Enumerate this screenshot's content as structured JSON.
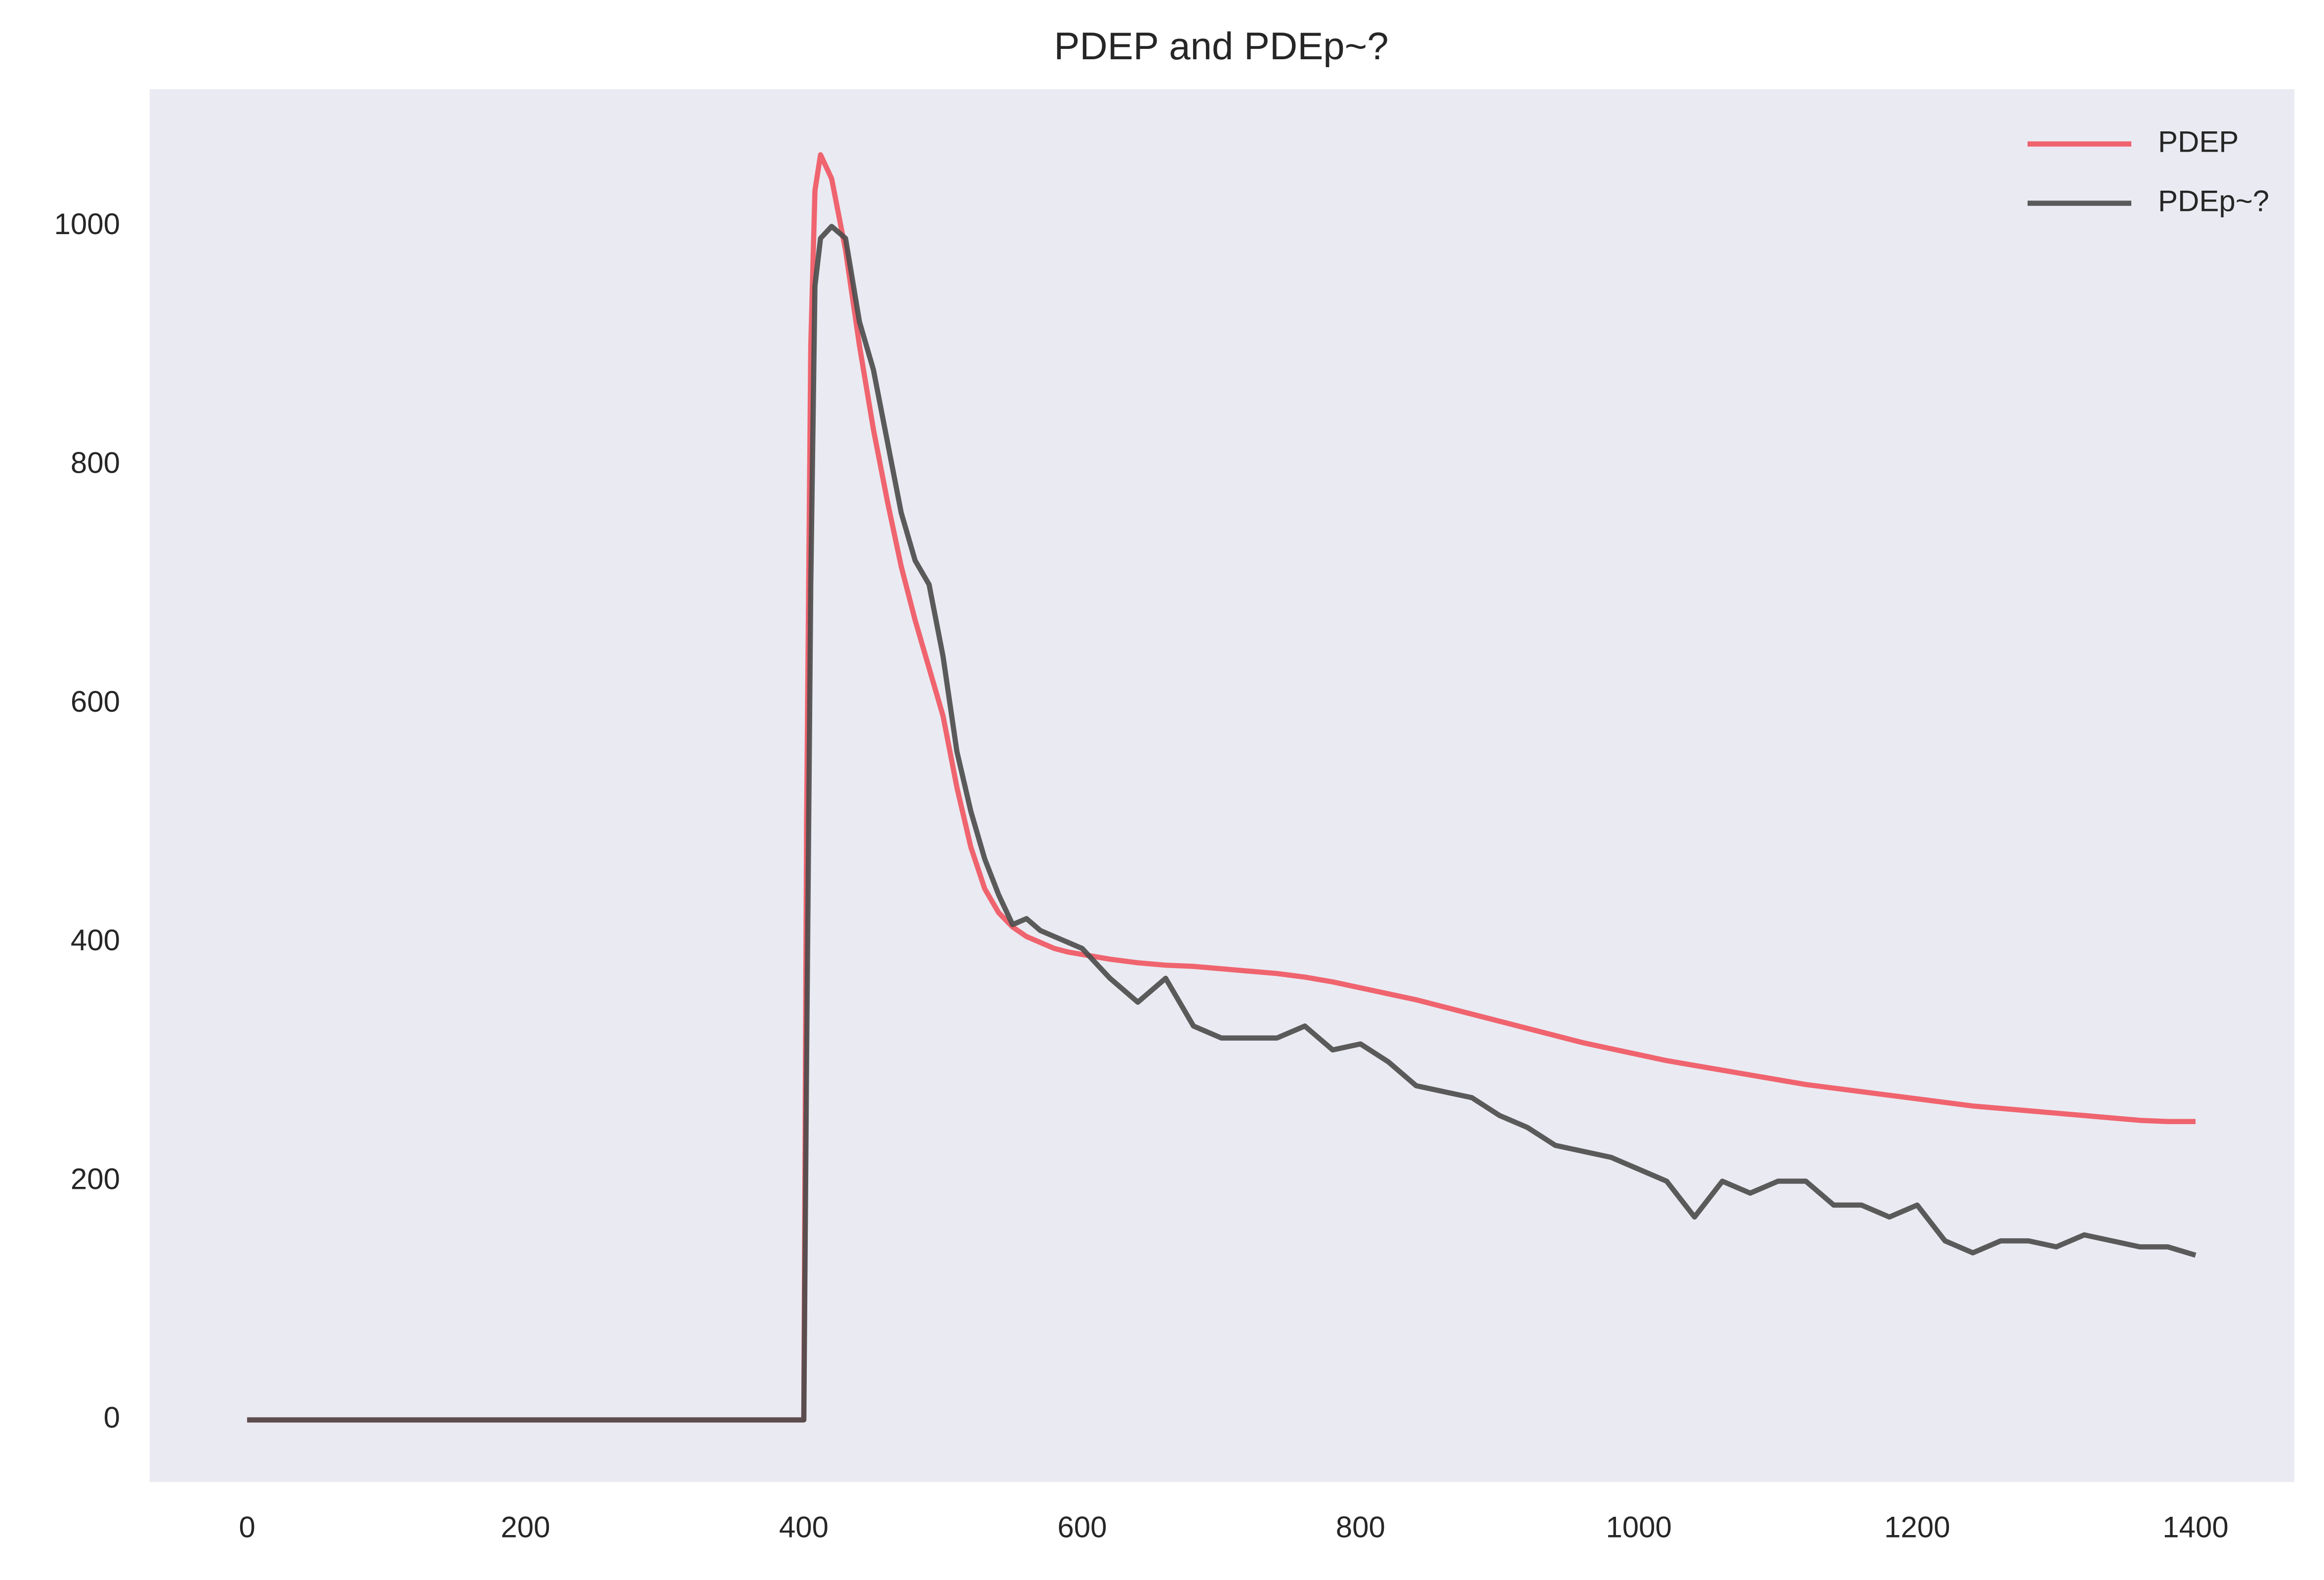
{
  "chart_data": {
    "type": "line",
    "title": "PDEP and PDEp~?",
    "x": [
      0,
      400,
      402,
      405,
      408,
      412,
      420,
      430,
      440,
      450,
      460,
      470,
      480,
      490,
      500,
      510,
      520,
      530,
      540,
      550,
      560,
      570,
      580,
      590,
      600,
      620,
      640,
      660,
      680,
      700,
      720,
      740,
      760,
      780,
      800,
      820,
      840,
      860,
      880,
      900,
      920,
      940,
      960,
      980,
      1000,
      1020,
      1040,
      1060,
      1080,
      1100,
      1120,
      1140,
      1160,
      1180,
      1200,
      1220,
      1240,
      1260,
      1280,
      1300,
      1320,
      1340,
      1360,
      1380,
      1400
    ],
    "series": [
      {
        "name": "PDEP",
        "color": "#f0555f",
        "values": [
          0,
          0,
          500,
          900,
          1030,
          1060,
          1040,
          980,
          900,
          830,
          770,
          715,
          670,
          630,
          590,
          530,
          480,
          445,
          425,
          413,
          405,
          400,
          395,
          392,
          390,
          386,
          383,
          381,
          380,
          378,
          376,
          374,
          371,
          367,
          362,
          357,
          352,
          346,
          340,
          334,
          328,
          322,
          316,
          311,
          306,
          301,
          297,
          293,
          289,
          285,
          281,
          278,
          275,
          272,
          269,
          266,
          263,
          261,
          259,
          257,
          255,
          253,
          251,
          250,
          250
        ]
      },
      {
        "name": "PDEp~?",
        "color": "#4a4a4a",
        "values": [
          0,
          0,
          300,
          700,
          950,
          990,
          1000,
          990,
          920,
          880,
          820,
          760,
          720,
          700,
          640,
          560,
          510,
          470,
          440,
          415,
          420,
          410,
          405,
          400,
          395,
          370,
          350,
          370,
          330,
          320,
          320,
          320,
          330,
          310,
          315,
          300,
          280,
          275,
          270,
          255,
          245,
          230,
          225,
          220,
          210,
          200,
          170,
          200,
          190,
          200,
          200,
          180,
          180,
          170,
          180,
          150,
          140,
          150,
          150,
          145,
          155,
          150,
          145,
          145,
          138
        ]
      }
    ],
    "xlim": [
      -70,
      1471
    ],
    "ylim": [
      -52,
      1115
    ],
    "xticks": [
      0,
      200,
      400,
      600,
      800,
      1000,
      1200,
      1400
    ],
    "yticks": [
      0,
      200,
      400,
      600,
      800,
      1000
    ],
    "grid": false,
    "legend": "upper right",
    "background": "#eaeaf2"
  }
}
